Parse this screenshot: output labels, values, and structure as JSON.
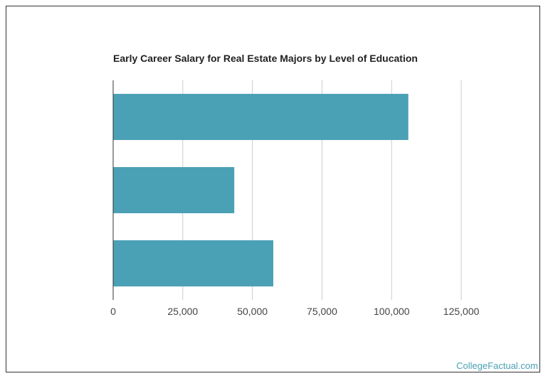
{
  "credit": "CollegeFactual.com",
  "colors": {
    "bar": "#4aa0b5",
    "grid": "#cccccc",
    "axis": "#333333"
  },
  "chart_data": {
    "type": "bar",
    "orientation": "horizontal",
    "title": "Early Career Salary for Real Estate Majors by Level of Education",
    "categories": [
      "",
      "",
      ""
    ],
    "values": [
      106000,
      43500,
      57500
    ],
    "xticks": [
      "0",
      "25,000",
      "50,000",
      "75,000",
      "100,000",
      "125,000"
    ],
    "xtick_values": [
      0,
      25000,
      50000,
      75000,
      100000,
      125000
    ],
    "xlim": [
      0,
      137500
    ],
    "xlabel": "",
    "ylabel": "",
    "grid": true
  }
}
